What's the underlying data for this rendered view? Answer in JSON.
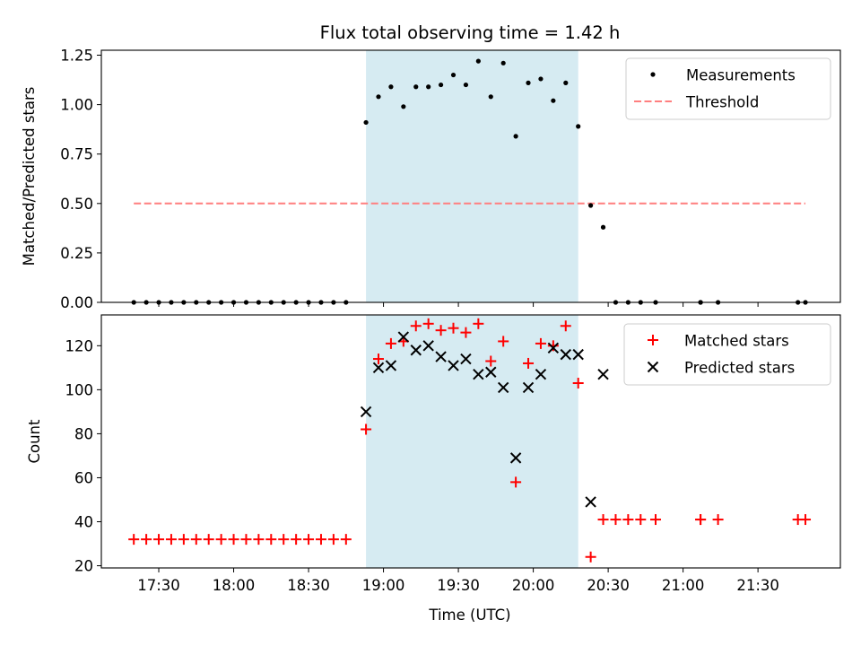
{
  "chart_data": [
    {
      "type": "scatter",
      "title": "Flux total observing time = 1.42 h",
      "xlabel": "",
      "ylabel": "Matched/Predicted stars",
      "xlim": [
        "17:07",
        "22:03"
      ],
      "ylim": [
        0,
        1.275
      ],
      "yticks": [
        "0.00",
        "0.25",
        "0.50",
        "0.75",
        "1.00",
        "1.25"
      ],
      "ytick_values": [
        0,
        0.25,
        0.5,
        0.75,
        1.0,
        1.25
      ],
      "grid": false,
      "legend_position": "upper right",
      "observing_window": [
        "18:53",
        "20:18"
      ],
      "series": [
        {
          "name": "Measurements",
          "x": [
            "17:20",
            "17:25",
            "17:30",
            "17:35",
            "17:40",
            "17:45",
            "17:50",
            "17:55",
            "18:00",
            "18:05",
            "18:10",
            "18:15",
            "18:20",
            "18:25",
            "18:30",
            "18:35",
            "18:40",
            "18:45",
            "18:53",
            "18:58",
            "19:03",
            "19:08",
            "19:13",
            "19:18",
            "19:23",
            "19:28",
            "19:33",
            "19:38",
            "19:43",
            "19:48",
            "19:53",
            "19:58",
            "20:03",
            "20:08",
            "20:13",
            "20:18",
            "20:23",
            "20:28",
            "20:33",
            "20:38",
            "20:43",
            "20:49",
            "21:07",
            "21:07",
            "21:14",
            "21:46",
            "21:49"
          ],
          "y": [
            0,
            0,
            0,
            0,
            0,
            0,
            0,
            0,
            0,
            0,
            0,
            0,
            0,
            0,
            0,
            0,
            0,
            0,
            0.91,
            1.04,
            1.09,
            0.99,
            1.09,
            1.09,
            1.1,
            1.15,
            1.1,
            1.22,
            1.04,
            1.21,
            0.84,
            1.11,
            1.13,
            1.02,
            1.11,
            0.89,
            0.49,
            0.38,
            0,
            0,
            0,
            0,
            0,
            0,
            0,
            0,
            0
          ]
        },
        {
          "name": "Threshold",
          "x": [
            "17:20",
            "21:49"
          ],
          "y": [
            0.5,
            0.5
          ]
        }
      ]
    },
    {
      "type": "scatter",
      "title": "",
      "xlabel": "Time (UTC)",
      "ylabel": "Count",
      "xlim": [
        "17:07",
        "22:03"
      ],
      "ylim": [
        19,
        134
      ],
      "yticks": [
        "20",
        "40",
        "60",
        "80",
        "100",
        "120"
      ],
      "ytick_values": [
        20,
        40,
        60,
        80,
        100,
        120
      ],
      "xticks": [
        "17:30",
        "18:00",
        "18:30",
        "19:00",
        "19:30",
        "20:00",
        "20:30",
        "21:00",
        "21:30"
      ],
      "grid": false,
      "legend_position": "upper right",
      "observing_window": [
        "18:53",
        "20:18"
      ],
      "series": [
        {
          "name": "Matched stars",
          "x": [
            "17:20",
            "17:25",
            "17:30",
            "17:35",
            "17:40",
            "17:45",
            "17:50",
            "17:55",
            "18:00",
            "18:05",
            "18:10",
            "18:15",
            "18:20",
            "18:25",
            "18:30",
            "18:35",
            "18:40",
            "18:45",
            "18:53",
            "18:58",
            "19:03",
            "19:08",
            "19:13",
            "19:18",
            "19:23",
            "19:28",
            "19:33",
            "19:38",
            "19:43",
            "19:48",
            "19:53",
            "19:58",
            "20:03",
            "20:08",
            "20:13",
            "20:18",
            "20:23",
            "20:28",
            "20:33",
            "20:38",
            "20:43",
            "20:49",
            "21:07",
            "21:07",
            "21:14",
            "21:46",
            "21:49"
          ],
          "y": [
            32,
            32,
            32,
            32,
            32,
            32,
            32,
            32,
            32,
            32,
            32,
            32,
            32,
            32,
            32,
            32,
            32,
            32,
            82,
            114,
            121,
            122,
            129,
            130,
            127,
            128,
            126,
            130,
            113,
            122,
            58,
            112,
            121,
            120,
            129,
            103,
            24,
            41,
            41,
            41,
            41,
            41,
            41,
            41,
            41,
            41,
            41
          ]
        },
        {
          "name": "Predicted stars",
          "x": [
            "18:53",
            "18:58",
            "19:03",
            "19:08",
            "19:13",
            "19:18",
            "19:23",
            "19:28",
            "19:33",
            "19:38",
            "19:43",
            "19:48",
            "19:53",
            "19:58",
            "20:03",
            "20:08",
            "20:13",
            "20:18",
            "20:23",
            "20:28"
          ],
          "y": [
            90,
            110,
            111,
            124,
            118,
            120,
            115,
            111,
            114,
            107,
            108,
            101,
            69,
            101,
            107,
            119,
            116,
            116,
            49,
            107
          ]
        }
      ]
    }
  ],
  "colors": {
    "measurements": "#000000",
    "threshold": "#ff7f7f",
    "matched": "#ff0000",
    "predicted": "#000000",
    "window": "#add8e6"
  }
}
